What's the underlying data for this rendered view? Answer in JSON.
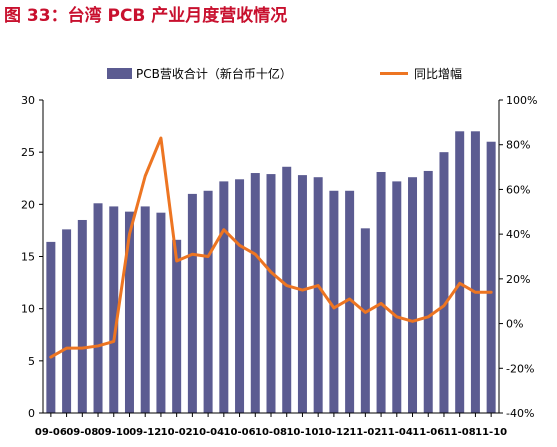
{
  "figure_title": "图 33：台湾 PCB 产业月度营收情况",
  "colors": {
    "bar": "#5b5b91",
    "line": "#ed7522",
    "title": "#c8102e"
  },
  "chart_data": {
    "type": "bar",
    "title": "",
    "xlabel": "",
    "ylabel": "",
    "legend_position": "top",
    "grid": false,
    "categories": [
      "09-06",
      "09-07",
      "09-08",
      "09-09",
      "09-10",
      "09-11",
      "09-12",
      "10-01",
      "10-02",
      "10-03",
      "10-04",
      "10-05",
      "10-06",
      "10-07",
      "10-08",
      "10-09",
      "10-10",
      "10-11",
      "10-12",
      "11-01",
      "11-02",
      "11-03",
      "11-04",
      "11-05",
      "11-06",
      "11-07",
      "11-08",
      "11-09",
      "11-10"
    ],
    "x_tick_labels": [
      "09-06",
      "09-08",
      "09-10",
      "09-12",
      "10-02",
      "10-04",
      "10-06",
      "10-08",
      "10-10",
      "10-12",
      "11-02",
      "11-04",
      "11-06",
      "11-08",
      "11-10"
    ],
    "ylim": [
      0,
      30
    ],
    "y_ticks": [
      "0",
      "5",
      "10",
      "15",
      "20",
      "25",
      "30"
    ],
    "y2lim": [
      -40,
      100
    ],
    "y2_ticks": [
      "-40%",
      "-20%",
      "0%",
      "20%",
      "40%",
      "60%",
      "80%",
      "100%"
    ],
    "series": [
      {
        "name": "PCB营收合计（新台币十亿）",
        "type": "bar",
        "axis": "left",
        "values": [
          16.4,
          17.6,
          18.5,
          20.1,
          19.8,
          19.3,
          19.8,
          19.2,
          16.6,
          21.0,
          21.3,
          22.2,
          22.4,
          23.0,
          22.9,
          23.6,
          22.8,
          22.6,
          21.3,
          21.3,
          17.7,
          23.1,
          22.2,
          22.6,
          23.2,
          25.0,
          27.0,
          27.0,
          26.0
        ]
      },
      {
        "name": "同比增幅",
        "type": "line",
        "axis": "right",
        "values": [
          -15,
          -11,
          -11,
          -10,
          -8,
          40,
          66,
          83,
          28,
          31,
          30,
          42,
          35,
          31,
          23,
          17,
          15,
          17,
          7,
          11,
          5,
          9,
          3,
          1,
          3,
          8,
          18,
          14,
          14
        ]
      }
    ]
  }
}
